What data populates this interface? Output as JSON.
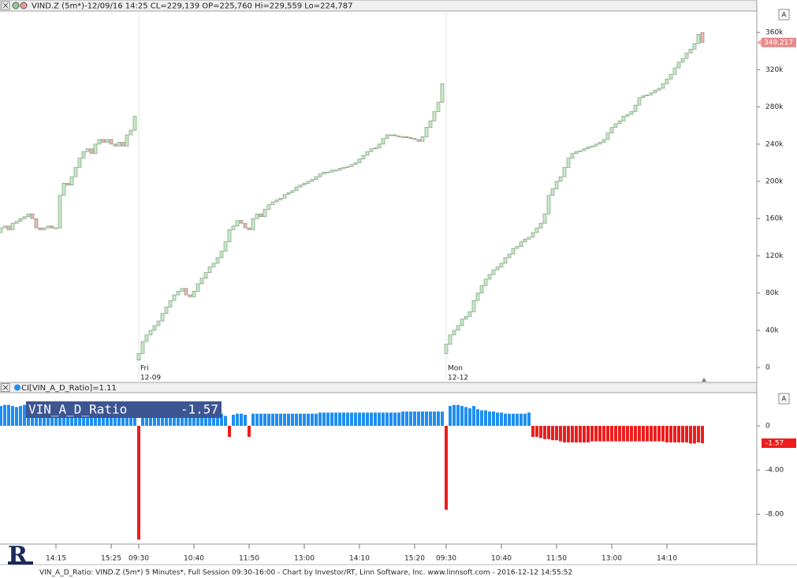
{
  "chart_data": [
    {
      "type": "candlestick",
      "title": "VIND.Z (5m*)-12/09/16 14:25 CL=229,139 OP=225,760 Hi=229,559 Lo=224,787",
      "up_color": "#c6ebc6",
      "down_color": "#f3b3b3",
      "outline_color": "#6e8a6e",
      "xlim": [
        -0.2,
        191.8
      ],
      "ylim": [
        -16000,
        383000
      ],
      "yticks": [
        0,
        {
          "value": 40000,
          "label": "40k"
        },
        {
          "value": 80000,
          "label": "80k"
        },
        {
          "value": 120000,
          "label": "120k"
        },
        {
          "value": 160000,
          "label": "160k"
        },
        {
          "value": 200000,
          "label": "200k"
        },
        {
          "value": 240000,
          "label": "240k"
        },
        {
          "value": 280000,
          "label": "280k"
        },
        {
          "value": 320000,
          "label": "320k"
        },
        {
          "value": 360000,
          "label": "360k"
        }
      ],
      "session_ticks": [
        {
          "value": 35,
          "label": "Fri",
          "sublabel": "12-09"
        },
        {
          "value": 113,
          "label": "Mon",
          "sublabel": "12-12"
        }
      ],
      "last_value_label": "349,217",
      "open": [
        145000,
        150000,
        152000,
        148000,
        155000,
        157000,
        160000,
        162000,
        165000,
        160000,
        150000,
        148000,
        150000,
        152000,
        150000,
        150000,
        185000,
        198000,
        196000,
        205000,
        215000,
        225000,
        232000,
        235000,
        230000,
        240000,
        245000,
        242000,
        245000,
        240000,
        238000,
        242000,
        238000,
        250000,
        255000,
        8000,
        15000,
        28000,
        35000,
        40000,
        45000,
        50000,
        58000,
        65000,
        72000,
        78000,
        82000,
        85000,
        78000,
        76000,
        82000,
        90000,
        96000,
        102000,
        108000,
        112000,
        118000,
        125000,
        135000,
        148000,
        152000,
        158000,
        155000,
        150000,
        148000,
        160000,
        165000,
        162000,
        170000,
        175000,
        178000,
        180000,
        182000,
        186000,
        188000,
        190000,
        194000,
        196000,
        198000,
        200000,
        202000,
        205000,
        208000,
        210000,
        210000,
        212000,
        212000,
        214000,
        215000,
        216000,
        218000,
        220000,
        224000,
        228000,
        232000,
        235000,
        236000,
        240000,
        246000,
        250000,
        250000,
        249000,
        248000,
        248000,
        247000,
        246000,
        245000,
        243000,
        248000,
        258000,
        265000,
        275000,
        285000,
        15000,
        25000,
        35000,
        40000,
        45000,
        52000,
        55000,
        60000,
        72000,
        80000,
        88000,
        95000,
        100000,
        105000,
        108000,
        112000,
        118000,
        122000,
        128000,
        130000,
        135000,
        138000,
        140000,
        145000,
        150000,
        155000,
        165000,
        185000,
        192000,
        200000,
        205000,
        215000,
        225000,
        230000,
        232000,
        233000,
        235000,
        237000,
        238000,
        240000,
        242000,
        245000,
        252000,
        258000,
        262000,
        265000,
        270000,
        272000,
        275000,
        282000,
        290000,
        292000,
        293000,
        295000,
        298000,
        300000,
        305000,
        310000,
        315000,
        322000,
        328000,
        332000,
        338000,
        342000,
        348000,
        360000
      ],
      "close": [
        150000,
        152000,
        148000,
        155000,
        157000,
        160000,
        162000,
        165000,
        160000,
        150000,
        148000,
        150000,
        152000,
        150000,
        150000,
        185000,
        198000,
        196000,
        205000,
        215000,
        225000,
        232000,
        235000,
        230000,
        240000,
        245000,
        242000,
        245000,
        240000,
        238000,
        242000,
        238000,
        250000,
        255000,
        270000,
        15000,
        28000,
        35000,
        40000,
        45000,
        50000,
        58000,
        65000,
        72000,
        78000,
        82000,
        85000,
        78000,
        76000,
        82000,
        90000,
        96000,
        102000,
        108000,
        112000,
        118000,
        125000,
        135000,
        148000,
        152000,
        158000,
        155000,
        150000,
        148000,
        160000,
        165000,
        162000,
        170000,
        175000,
        178000,
        180000,
        182000,
        186000,
        188000,
        190000,
        194000,
        196000,
        198000,
        200000,
        202000,
        205000,
        208000,
        210000,
        210000,
        212000,
        212000,
        214000,
        215000,
        216000,
        218000,
        220000,
        224000,
        228000,
        232000,
        235000,
        236000,
        240000,
        246000,
        250000,
        250000,
        249000,
        248000,
        248000,
        247000,
        246000,
        245000,
        243000,
        248000,
        258000,
        265000,
        275000,
        285000,
        305000,
        25000,
        35000,
        40000,
        45000,
        52000,
        55000,
        60000,
        72000,
        80000,
        88000,
        95000,
        100000,
        105000,
        108000,
        112000,
        118000,
        122000,
        128000,
        130000,
        135000,
        138000,
        140000,
        145000,
        150000,
        155000,
        165000,
        185000,
        192000,
        200000,
        205000,
        215000,
        225000,
        230000,
        232000,
        233000,
        235000,
        237000,
        238000,
        240000,
        242000,
        245000,
        252000,
        258000,
        262000,
        265000,
        270000,
        272000,
        275000,
        282000,
        290000,
        292000,
        293000,
        295000,
        298000,
        300000,
        305000,
        310000,
        315000,
        322000,
        328000,
        332000,
        338000,
        342000,
        348000,
        358000,
        349217
      ]
    },
    {
      "type": "bar",
      "title": "CI[VIN_A_D_Ratio]=1.11",
      "label_name": "VIN_A_D_Ratio",
      "positive_color": "#1f8ef0",
      "negative_color": "#ee1c1c",
      "xlim": [
        -0.2,
        191.8
      ],
      "ylim": [
        -10.7,
        3.0
      ],
      "yticks": [
        0,
        {
          "value": -4,
          "label": "-4.00"
        },
        {
          "value": -8,
          "label": "-8.00"
        }
      ],
      "xticks": [
        {
          "value": 14,
          "label": "14:15"
        },
        {
          "value": 28,
          "label": "15:25"
        },
        {
          "value": 35,
          "label": "09:30"
        },
        {
          "value": 49,
          "label": "10:40"
        },
        {
          "value": 63,
          "label": "11:50"
        },
        {
          "value": 77,
          "label": "13:00"
        },
        {
          "value": 91,
          "label": "14:10"
        },
        {
          "value": 105,
          "label": "15:20"
        },
        {
          "value": 113,
          "label": "09:30"
        },
        {
          "value": 127,
          "label": "10:40"
        },
        {
          "value": 141,
          "label": "11:50"
        },
        {
          "value": 155,
          "label": "13:00"
        },
        {
          "value": 169,
          "label": "14:10"
        }
      ],
      "values": [
        1.8,
        1.9,
        1.9,
        1.8,
        1.7,
        1.8,
        1.9,
        1.9,
        1.9,
        1.8,
        1.8,
        1.9,
        1.9,
        1.9,
        1.9,
        1.8,
        1.8,
        1.9,
        1.9,
        1.9,
        1.9,
        1.9,
        1.9,
        1.8,
        1.8,
        1.8,
        1.8,
        1.8,
        1.8,
        1.8,
        1.8,
        1.8,
        1.8,
        1.9,
        2.0,
        -10.3,
        1.2,
        1.2,
        1.3,
        1.3,
        1.2,
        1.2,
        1.2,
        1.3,
        1.2,
        1.2,
        1.2,
        1.2,
        1.2,
        1.2,
        1.2,
        1.2,
        1.2,
        1.2,
        1.2,
        1.1,
        1.1,
        0.9,
        -1.0,
        1.0,
        1.1,
        1.1,
        1.0,
        -1.0,
        1.1,
        1.1,
        1.1,
        1.1,
        1.1,
        1.1,
        1.1,
        1.1,
        1.1,
        1.1,
        1.1,
        1.1,
        1.1,
        1.1,
        1.1,
        1.1,
        1.1,
        1.2,
        1.2,
        1.2,
        1.2,
        1.2,
        1.2,
        1.2,
        1.2,
        1.2,
        1.2,
        1.2,
        1.2,
        1.2,
        1.2,
        1.2,
        1.2,
        1.2,
        1.2,
        1.2,
        1.2,
        1.2,
        1.3,
        1.3,
        1.3,
        1.3,
        1.3,
        1.3,
        1.3,
        1.3,
        1.3,
        1.3,
        1.3,
        -7.6,
        1.8,
        1.9,
        1.9,
        1.8,
        1.7,
        1.6,
        1.8,
        1.5,
        1.4,
        1.4,
        1.3,
        1.3,
        1.2,
        1.2,
        1.1,
        1.1,
        1.1,
        1.1,
        1.1,
        1.1,
        1.2,
        -1.0,
        -1.0,
        -1.1,
        -1.2,
        -1.2,
        -1.3,
        -1.3,
        -1.4,
        -1.5,
        -1.5,
        -1.5,
        -1.5,
        -1.5,
        -1.5,
        -1.5,
        -1.4,
        -1.4,
        -1.4,
        -1.4,
        -1.4,
        -1.4,
        -1.4,
        -1.4,
        -1.4,
        -1.4,
        -1.4,
        -1.4,
        -1.4,
        -1.4,
        -1.4,
        -1.4,
        -1.4,
        -1.4,
        -1.4,
        -1.5,
        -1.5,
        -1.5,
        -1.5,
        -1.5,
        -1.5,
        -1.6,
        -1.6,
        -1.5,
        -1.57
      ]
    }
  ],
  "footer": "VIN_A_D_Ratio: VIND.Z (5m*) 5 Minutes*, Full Session 09:30-16:00 - Chart by Investor/RT, Linn Software, Inc. www.linnsoft.com - 2016-12-12 14:55:52"
}
